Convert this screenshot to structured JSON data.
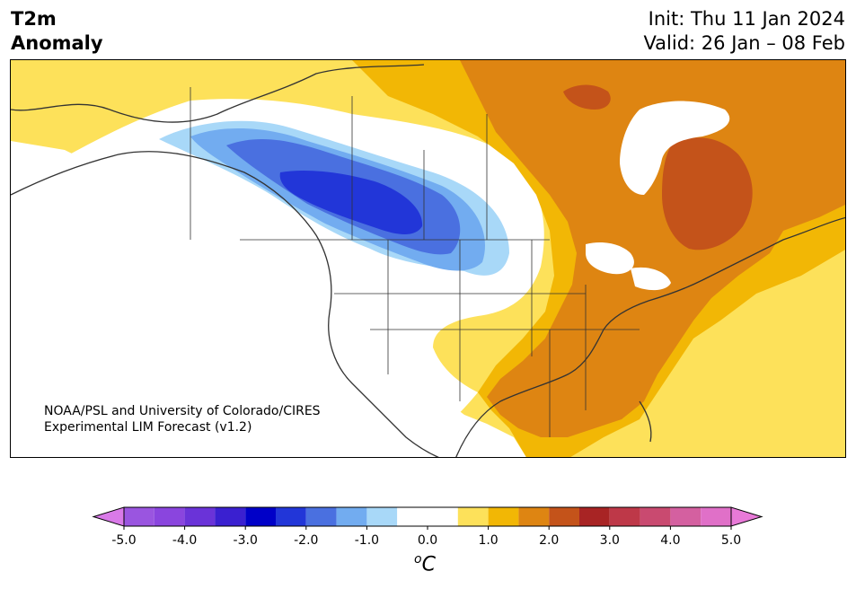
{
  "title": {
    "line1": "T2m",
    "line2": "Anomaly"
  },
  "init": {
    "line1": "Init: Thu 11 Jan 2024",
    "line2": "Valid: 26 Jan – 08 Feb"
  },
  "credit": {
    "line1": "NOAA/PSL and University of Colorado/CIRES",
    "line2": "Experimental LIM Forecast (v1.2)"
  },
  "colorbar": {
    "unit_base": "C",
    "unit_sup": "o",
    "ticks": [
      "-5.0",
      "-4.0",
      "-3.0",
      "-2.0",
      "-1.0",
      "0.0",
      "1.0",
      "2.0",
      "3.0",
      "4.0",
      "5.0"
    ],
    "bins": [
      {
        "lo": -5.0,
        "hi": -4.5,
        "color": "#9a55e0"
      },
      {
        "lo": -4.5,
        "hi": -4.0,
        "color": "#8a45de"
      },
      {
        "lo": -4.0,
        "hi": -3.5,
        "color": "#6a33d8"
      },
      {
        "lo": -3.5,
        "hi": -3.0,
        "color": "#3a20d0"
      },
      {
        "lo": -3.0,
        "hi": -2.5,
        "color": "#0000c8"
      },
      {
        "lo": -2.5,
        "hi": -2.0,
        "color": "#2236d8"
      },
      {
        "lo": -2.0,
        "hi": -1.5,
        "color": "#4a70e0"
      },
      {
        "lo": -1.5,
        "hi": -1.0,
        "color": "#72acf0"
      },
      {
        "lo": -1.0,
        "hi": -0.5,
        "color": "#a8d8f8"
      },
      {
        "lo": -0.5,
        "hi": 0.5,
        "color": "#ffffff"
      },
      {
        "lo": 0.5,
        "hi": 1.0,
        "color": "#fde15a"
      },
      {
        "lo": 1.0,
        "hi": 1.5,
        "color": "#f2b705"
      },
      {
        "lo": 1.5,
        "hi": 2.0,
        "color": "#de8512"
      },
      {
        "lo": 2.0,
        "hi": 2.5,
        "color": "#c4531a"
      },
      {
        "lo": 2.5,
        "hi": 3.0,
        "color": "#a82424"
      },
      {
        "lo": 3.0,
        "hi": 3.5,
        "color": "#be3848"
      },
      {
        "lo": 3.5,
        "hi": 4.0,
        "color": "#c94a70"
      },
      {
        "lo": 4.0,
        "hi": 4.5,
        "color": "#d460a0"
      },
      {
        "lo": 4.5,
        "hi": 5.0,
        "color": "#e070c8"
      }
    ],
    "under_color": "#d97ae8",
    "over_color": "#e87ad8"
  },
  "map_colors": {
    "land_outline": "#333333",
    "neg_light": "#a8d8f8",
    "neg_mid": "#72acf0",
    "neg_strong": "#4a70e0",
    "neg_core": "#2236d8",
    "pos_light": "#fde15a",
    "pos_mid": "#f2b705",
    "pos_strong": "#de8512",
    "pos_core": "#c4531a"
  }
}
